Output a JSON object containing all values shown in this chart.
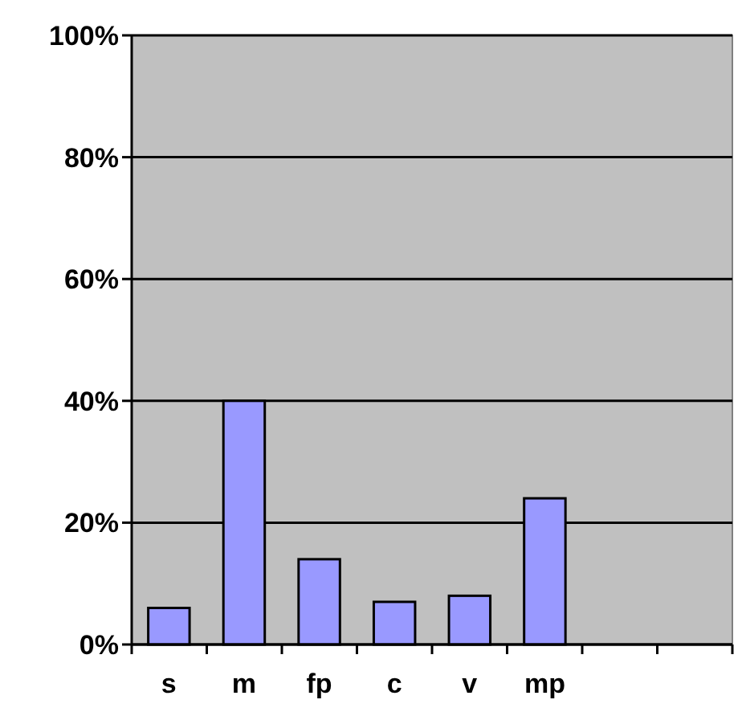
{
  "chart_data": {
    "type": "bar",
    "categories": [
      "s",
      "m",
      "fp",
      "c",
      "v",
      "mp",
      null,
      null
    ],
    "values": [
      6,
      40,
      14,
      7,
      8,
      24,
      null,
      null
    ],
    "color": "#9999ff",
    "ylim": [
      0,
      100
    ],
    "yticks": [
      {
        "value": 0,
        "label": "0%"
      },
      {
        "value": 20,
        "label": "20%"
      },
      {
        "value": 40,
        "label": "40%"
      },
      {
        "value": 60,
        "label": "60%"
      },
      {
        "value": 80,
        "label": "80%"
      },
      {
        "value": 100,
        "label": "100%"
      }
    ],
    "grid": "y"
  }
}
